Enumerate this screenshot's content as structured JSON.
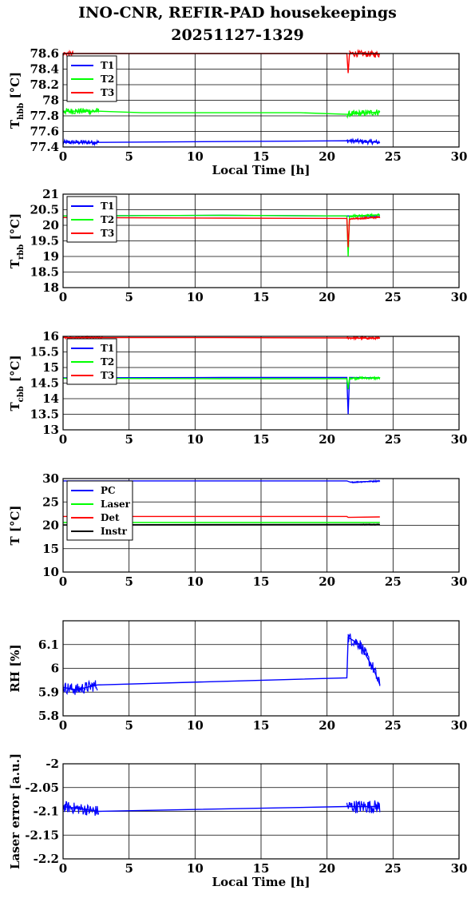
{
  "title": {
    "line1": "INO-CNR, REFIR-PAD housekeepings",
    "line2": "20251127-1329"
  },
  "colors": {
    "blue": "#0000ff",
    "green": "#00ff00",
    "red": "#ff0000",
    "black": "#000000"
  },
  "chart_data": [
    {
      "type": "line",
      "ylabel_main": "T",
      "ylabel_sub": "hbb",
      "ylabel_rest": " [°C]",
      "xlabel": "Local Time [h]",
      "xlim": [
        0,
        30
      ],
      "ylim": [
        77.4,
        78.6
      ],
      "xticks": [
        "0",
        "5",
        "10",
        "15",
        "20",
        "25",
        "30"
      ],
      "yticks": [
        "77.4",
        "77.6",
        "77.8",
        "78",
        "78.2",
        "78.4",
        "78.6"
      ],
      "grid": true,
      "legend": "top-left",
      "series": [
        {
          "name": "T1",
          "color": "blue",
          "x": [
            0,
            2.7,
            21.5,
            24.0
          ],
          "y": [
            77.46,
            77.46,
            77.48,
            77.46
          ],
          "noise": [
            [
              0,
              2.7,
              0.03
            ],
            [
              21.5,
              24.0,
              0.03
            ]
          ]
        },
        {
          "name": "T2",
          "color": "green",
          "x": [
            0,
            2.7,
            6,
            18,
            21.5,
            24.0
          ],
          "y": [
            77.86,
            77.86,
            77.84,
            77.84,
            77.82,
            77.85
          ],
          "noise": [
            [
              0,
              2.7,
              0.04
            ],
            [
              21.5,
              24.0,
              0.04
            ]
          ]
        },
        {
          "name": "T3",
          "color": "red",
          "x": [
            0,
            12,
            21.5,
            21.6,
            21.7,
            24.0
          ],
          "y": [
            78.6,
            78.6,
            78.6,
            78.35,
            78.6,
            78.59
          ],
          "noise": [
            [
              0,
              0.8,
              0.03
            ],
            [
              21.7,
              24.0,
              0.04
            ]
          ]
        }
      ]
    },
    {
      "type": "line",
      "ylabel_main": "T",
      "ylabel_sub": "rbb",
      "ylabel_rest": " [°C]",
      "xlabel": "",
      "xlim": [
        0,
        30
      ],
      "ylim": [
        18,
        21
      ],
      "xticks": [
        "0",
        "5",
        "10",
        "15",
        "20",
        "25",
        "30"
      ],
      "yticks": [
        "18",
        "18.5",
        "19",
        "19.5",
        "20",
        "20.5",
        "21"
      ],
      "grid": true,
      "legend": "top-left",
      "series": [
        {
          "name": "T1",
          "color": "blue",
          "x": [
            0,
            12,
            21.5,
            24.0
          ],
          "y": [
            20.3,
            20.32,
            20.3,
            20.28
          ],
          "noise": []
        },
        {
          "name": "T2",
          "color": "green",
          "x": [
            0,
            12,
            21.5,
            21.6,
            21.7,
            24.0
          ],
          "y": [
            20.3,
            20.32,
            20.3,
            19.0,
            20.3,
            20.33
          ],
          "noise": [
            [
              21.7,
              24.0,
              0.04
            ]
          ]
        },
        {
          "name": "T3",
          "color": "red",
          "x": [
            0,
            12,
            21.5,
            21.6,
            21.7,
            24.0
          ],
          "y": [
            20.25,
            20.23,
            20.22,
            19.3,
            20.2,
            20.26
          ],
          "noise": [
            [
              21.7,
              24.0,
              0.03
            ]
          ]
        }
      ]
    },
    {
      "type": "line",
      "ylabel_main": "T",
      "ylabel_sub": "cbb",
      "ylabel_rest": " [°C]",
      "xlabel": "",
      "xlim": [
        0,
        30
      ],
      "ylim": [
        13,
        16
      ],
      "xticks": [
        "0",
        "5",
        "10",
        "15",
        "20",
        "25",
        "30"
      ],
      "yticks": [
        "13",
        "13.5",
        "14",
        "14.5",
        "15",
        "15.5",
        "16"
      ],
      "grid": true,
      "legend": "top-left",
      "series": [
        {
          "name": "T1",
          "color": "blue",
          "x": [
            0,
            12,
            21.5,
            21.6,
            21.7,
            24.0
          ],
          "y": [
            14.67,
            14.68,
            14.68,
            13.5,
            14.68,
            14.67
          ],
          "noise": []
        },
        {
          "name": "T2",
          "color": "green",
          "x": [
            0,
            12,
            21.5,
            21.6,
            21.7,
            24.0
          ],
          "y": [
            14.65,
            14.64,
            14.64,
            14.3,
            14.66,
            14.66
          ],
          "noise": [
            [
              21.7,
              24.0,
              0.04
            ]
          ]
        },
        {
          "name": "T3",
          "color": "red",
          "x": [
            0,
            12,
            21.5,
            24.0
          ],
          "y": [
            15.96,
            15.96,
            15.95,
            15.94
          ],
          "noise": [
            [
              0,
              3.0,
              0.03
            ],
            [
              21.5,
              24.0,
              0.04
            ]
          ]
        }
      ]
    },
    {
      "type": "line",
      "ylabel_main": "T [°C]",
      "ylabel_sub": "",
      "ylabel_rest": "",
      "xlabel": "",
      "xlim": [
        0,
        30
      ],
      "ylim": [
        10,
        30
      ],
      "xticks": [
        "0",
        "5",
        "10",
        "15",
        "20",
        "25",
        "30"
      ],
      "yticks": [
        "10",
        "15",
        "20",
        "25",
        "30"
      ],
      "grid": true,
      "legend": "top-left",
      "series": [
        {
          "name": "PC",
          "color": "blue",
          "x": [
            0,
            21.5,
            21.8,
            24.0
          ],
          "y": [
            29.5,
            29.5,
            29.2,
            29.5
          ],
          "noise": [
            [
              21.8,
              24.0,
              0.15
            ]
          ]
        },
        {
          "name": "Laser",
          "color": "green",
          "x": [
            0,
            24.0
          ],
          "y": [
            20.6,
            20.6
          ],
          "noise": []
        },
        {
          "name": "Det",
          "color": "red",
          "x": [
            0,
            21.5,
            21.6,
            24.0
          ],
          "y": [
            21.9,
            21.9,
            21.7,
            21.8
          ],
          "noise": []
        },
        {
          "name": "Instr",
          "color": "black",
          "x": [
            0,
            24.0
          ],
          "y": [
            20.1,
            20.2
          ],
          "noise": [
            [
              22.5,
              24.0,
              0.1
            ]
          ]
        }
      ]
    },
    {
      "type": "line",
      "ylabel_main": "RH [%]",
      "ylabel_sub": "",
      "ylabel_rest": "",
      "xlabel": "",
      "xlim": [
        0,
        30
      ],
      "ylim": [
        5.8,
        6.2
      ],
      "xticks": [
        "0",
        "5",
        "10",
        "15",
        "20",
        "25",
        "30"
      ],
      "yticks": [
        "5.8",
        "5.9",
        "6",
        "6.1"
      ],
      "grid": true,
      "legend": "",
      "series": [
        {
          "name": "",
          "color": "blue",
          "x": [
            0,
            1.0,
            2.6,
            21.5,
            21.6,
            22.5,
            23.5,
            24.0
          ],
          "y": [
            5.92,
            5.91,
            5.93,
            5.96,
            6.13,
            6.1,
            6.0,
            5.93
          ],
          "noise": [
            [
              0,
              2.6,
              0.025
            ],
            [
              21.6,
              24.0,
              0.025
            ]
          ]
        }
      ]
    },
    {
      "type": "line",
      "ylabel_main": "Laser error [a.u.]",
      "ylabel_sub": "",
      "ylabel_rest": "",
      "xlabel": "Local Time [h]",
      "xlim": [
        0,
        30
      ],
      "ylim": [
        -2.2,
        -2.0
      ],
      "xticks": [
        "0",
        "5",
        "10",
        "15",
        "20",
        "25",
        "30"
      ],
      "yticks": [
        "-2.2",
        "-2.15",
        "-2.1",
        "-2.05",
        "-2"
      ],
      "grid": true,
      "legend": "",
      "series": [
        {
          "name": "",
          "color": "blue",
          "x": [
            0,
            2.7,
            21.5,
            24.0
          ],
          "y": [
            -2.09,
            -2.1,
            -2.09,
            -2.09
          ],
          "noise": [
            [
              0,
              2.7,
              0.012
            ],
            [
              21.5,
              24.0,
              0.014
            ]
          ]
        }
      ]
    }
  ]
}
